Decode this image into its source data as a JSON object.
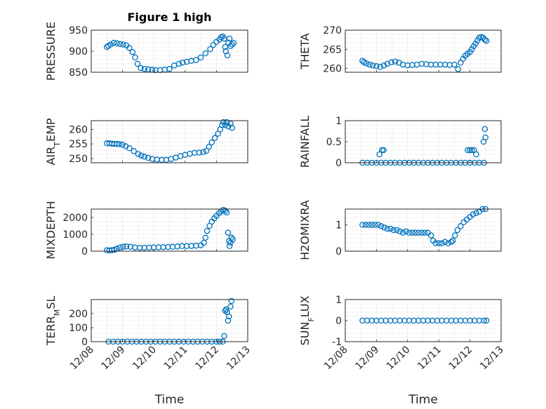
{
  "chart_data": [
    {
      "type": "scatter",
      "title": "Figure 1 high",
      "ylabel": "PRESSURE",
      "ylim": [
        850,
        950
      ],
      "yticks": [
        850,
        900,
        950
      ],
      "xlim": [
        "12/08",
        "12/13"
      ],
      "xticks": [
        "12/08",
        "12/09",
        "12/10",
        "12/11",
        "12/12",
        "12/13"
      ],
      "show_xticklabels": false,
      "xlabel": "",
      "color": "#0072BD",
      "x": [
        0.5,
        0.55,
        0.62,
        0.72,
        0.82,
        0.92,
        1.02,
        1.12,
        1.22,
        1.32,
        1.4,
        1.48,
        1.58,
        1.7,
        1.82,
        1.95,
        2.05,
        2.2,
        2.35,
        2.5,
        2.65,
        2.8,
        2.92,
        3.05,
        3.2,
        3.35,
        3.5,
        3.65,
        3.8,
        3.9,
        4.0,
        4.1,
        4.15,
        4.2,
        4.25,
        4.28,
        4.3,
        4.35,
        4.38,
        4.42,
        4.45,
        4.5,
        4.55
      ],
      "y": [
        910,
        913,
        916,
        920,
        919,
        917,
        916,
        914,
        908,
        898,
        885,
        870,
        860,
        858,
        857,
        856,
        855,
        855,
        856,
        858,
        866,
        870,
        873,
        875,
        877,
        879,
        885,
        895,
        905,
        915,
        922,
        928,
        933,
        935,
        930,
        910,
        900,
        890,
        920,
        930,
        912,
        916,
        920
      ]
    },
    {
      "type": "scatter",
      "ylabel": "THETA",
      "ylim": [
        259,
        270
      ],
      "yticks": [
        260,
        265,
        270
      ],
      "xlim": [
        "12/08",
        "12/13"
      ],
      "xticks": [
        "12/08",
        "12/09",
        "12/10",
        "12/11",
        "12/12",
        "12/13"
      ],
      "show_xticklabels": false,
      "xlabel": "",
      "color": "#0072BD",
      "x": [
        0.55,
        0.6,
        0.68,
        0.78,
        0.88,
        1.0,
        1.12,
        1.24,
        1.35,
        1.48,
        1.6,
        1.72,
        1.85,
        2.0,
        2.15,
        2.3,
        2.45,
        2.6,
        2.75,
        2.9,
        3.05,
        3.2,
        3.35,
        3.5,
        3.62,
        3.7,
        3.78,
        3.85,
        3.92,
        4.0,
        4.06,
        4.12,
        4.18,
        4.24,
        4.3,
        4.36,
        4.42,
        4.48,
        4.53
      ],
      "y": [
        262.0,
        261.6,
        261.3,
        261.0,
        260.8,
        260.6,
        260.4,
        260.8,
        261.2,
        261.6,
        261.8,
        261.5,
        261.0,
        260.8,
        260.9,
        261.0,
        261.2,
        261.1,
        261.0,
        261.0,
        261.0,
        261.0,
        260.9,
        261.0,
        259.8,
        261.5,
        262.5,
        263.3,
        263.8,
        264.3,
        265.0,
        265.8,
        266.5,
        267.3,
        268.0,
        268.2,
        268.0,
        267.5,
        267.2
      ]
    },
    {
      "type": "scatter",
      "ylabel": "AIR_TEMP",
      "ylim": [
        248.5,
        263
      ],
      "yticks": [
        250,
        255,
        260
      ],
      "xlim": [
        "12/08",
        "12/13"
      ],
      "xticks": [
        "12/08",
        "12/09",
        "12/10",
        "12/11",
        "12/12",
        "12/13"
      ],
      "show_xticklabels": false,
      "xlabel": "",
      "color": "#0072BD",
      "x": [
        0.5,
        0.58,
        0.66,
        0.74,
        0.82,
        0.9,
        1.0,
        1.1,
        1.22,
        1.36,
        1.5,
        1.6,
        1.7,
        1.82,
        1.95,
        2.1,
        2.25,
        2.4,
        2.55,
        2.7,
        2.85,
        3.0,
        3.15,
        3.3,
        3.45,
        3.58,
        3.68,
        3.76,
        3.85,
        3.95,
        4.05,
        4.12,
        4.18,
        4.22,
        4.28,
        4.33,
        4.38,
        4.45,
        4.5
      ],
      "y": [
        255.2,
        255.2,
        255.1,
        255.0,
        255.0,
        254.9,
        254.7,
        254.2,
        253.5,
        252.5,
        251.5,
        251.0,
        250.6,
        250.2,
        249.8,
        249.6,
        249.5,
        249.5,
        249.8,
        250.3,
        250.8,
        251.2,
        251.6,
        251.9,
        252.0,
        252.2,
        252.6,
        254.0,
        255.5,
        257.0,
        258.5,
        260.0,
        261.5,
        262.5,
        261.5,
        262.5,
        261.0,
        262.0,
        260.5
      ]
    },
    {
      "type": "scatter",
      "ylabel": "RAINFALL",
      "ylim": [
        0,
        1
      ],
      "yticks": [
        0,
        0.5,
        1
      ],
      "xlim": [
        "12/08",
        "12/13"
      ],
      "xticks": [
        "12/08",
        "12/09",
        "12/10",
        "12/11",
        "12/12",
        "12/13"
      ],
      "show_xticklabels": false,
      "xlabel": "",
      "color": "#0072BD",
      "x": [
        0.55,
        0.7,
        0.85,
        1.0,
        1.15,
        1.3,
        1.45,
        1.6,
        1.75,
        1.9,
        2.05,
        2.2,
        2.35,
        2.5,
        2.65,
        2.8,
        2.95,
        3.1,
        3.25,
        3.4,
        3.55,
        3.7,
        3.85,
        4.0,
        4.15,
        4.3,
        4.45,
        1.1,
        1.18,
        1.23,
        3.93,
        4.0,
        4.06,
        4.13,
        4.2,
        4.44,
        4.48,
        4.5
      ],
      "y": [
        0,
        0,
        0,
        0,
        0,
        0,
        0,
        0,
        0,
        0,
        0,
        0,
        0,
        0,
        0,
        0,
        0,
        0,
        0,
        0,
        0,
        0,
        0,
        0,
        0,
        0,
        0,
        0.2,
        0.3,
        0.3,
        0.3,
        0.3,
        0.3,
        0.3,
        0.2,
        0.5,
        0.8,
        0.6
      ]
    },
    {
      "type": "scatter",
      "ylabel": "MIXDEPTH",
      "ylim": [
        0,
        2500
      ],
      "yticks": [
        0,
        1000,
        2000
      ],
      "xlim": [
        "12/08",
        "12/13"
      ],
      "xticks": [
        "12/08",
        "12/09",
        "12/10",
        "12/11",
        "12/12",
        "12/13"
      ],
      "show_xticklabels": false,
      "xlabel": "",
      "color": "#0072BD",
      "x": [
        0.5,
        0.58,
        0.66,
        0.74,
        0.82,
        0.92,
        1.02,
        1.12,
        1.25,
        1.4,
        1.55,
        1.7,
        1.85,
        2.0,
        2.15,
        2.3,
        2.45,
        2.6,
        2.75,
        2.9,
        3.05,
        3.2,
        3.35,
        3.5,
        3.6,
        3.65,
        3.7,
        3.78,
        3.85,
        3.93,
        4.0,
        4.08,
        4.15,
        4.22,
        4.28,
        4.33,
        4.37,
        4.4,
        4.42,
        4.45,
        4.48,
        4.52
      ],
      "y": [
        50,
        40,
        60,
        80,
        150,
        220,
        260,
        280,
        260,
        220,
        200,
        200,
        210,
        220,
        230,
        240,
        250,
        260,
        280,
        300,
        300,
        310,
        320,
        350,
        500,
        800,
        1200,
        1500,
        1750,
        1950,
        2100,
        2250,
        2350,
        2450,
        2400,
        2300,
        1100,
        600,
        300,
        500,
        800,
        700
      ]
    },
    {
      "type": "scatter",
      "ylabel": "H2OMIXRA",
      "ylim": [
        0,
        1.6
      ],
      "yticks": [
        0,
        1
      ],
      "xlim": [
        "12/08",
        "12/13"
      ],
      "xticks": [
        "12/08",
        "12/09",
        "12/10",
        "12/11",
        "12/12",
        "12/13"
      ],
      "show_xticklabels": false,
      "xlabel": "",
      "color": "#0072BD",
      "x": [
        0.55,
        0.65,
        0.75,
        0.85,
        0.95,
        1.05,
        1.15,
        1.25,
        1.35,
        1.45,
        1.55,
        1.65,
        1.75,
        1.85,
        1.95,
        2.05,
        2.15,
        2.25,
        2.35,
        2.45,
        2.55,
        2.65,
        2.75,
        2.82,
        2.9,
        3.0,
        3.1,
        3.2,
        3.3,
        3.4,
        3.45,
        3.52,
        3.6,
        3.7,
        3.8,
        3.9,
        4.0,
        4.1,
        4.2,
        4.3,
        4.4,
        4.5
      ],
      "y": [
        1.0,
        1.0,
        1.0,
        1.0,
        1.0,
        1.0,
        0.95,
        0.9,
        0.85,
        0.85,
        0.8,
        0.8,
        0.75,
        0.7,
        0.75,
        0.7,
        0.7,
        0.7,
        0.7,
        0.7,
        0.7,
        0.7,
        0.6,
        0.4,
        0.3,
        0.3,
        0.3,
        0.35,
        0.3,
        0.35,
        0.4,
        0.6,
        0.8,
        0.95,
        1.1,
        1.2,
        1.3,
        1.4,
        1.45,
        1.5,
        1.6,
        1.6
      ]
    },
    {
      "type": "scatter",
      "ylabel": "TERR_MSL",
      "ylim": [
        0,
        300
      ],
      "yticks": [
        0,
        100,
        200
      ],
      "xlim": [
        "12/08",
        "12/13"
      ],
      "xticks": [
        "12/08",
        "12/09",
        "12/10",
        "12/11",
        "12/12",
        "12/13"
      ],
      "show_xticklabels": true,
      "xlabel": "Time",
      "color": "#0072BD",
      "x": [
        0.55,
        0.7,
        0.85,
        1.0,
        1.15,
        1.3,
        1.45,
        1.6,
        1.75,
        1.9,
        2.05,
        2.2,
        2.35,
        2.5,
        2.65,
        2.8,
        2.95,
        3.1,
        3.25,
        3.4,
        3.55,
        3.7,
        3.85,
        4.0,
        4.1,
        4.2,
        4.25,
        4.28,
        4.31,
        4.34,
        4.37,
        4.4,
        4.45,
        4.48
      ],
      "y": [
        0,
        0,
        0,
        0,
        0,
        0,
        0,
        0,
        0,
        0,
        0,
        0,
        0,
        0,
        0,
        0,
        0,
        0,
        0,
        0,
        0,
        0,
        0,
        0,
        0,
        0,
        40,
        220,
        230,
        210,
        150,
        180,
        250,
        290
      ]
    },
    {
      "type": "scatter",
      "ylabel": "SUN_FLUX",
      "ylim": [
        -1,
        1
      ],
      "yticks": [
        -1,
        0,
        1
      ],
      "xlim": [
        "12/08",
        "12/13"
      ],
      "xticks": [
        "12/08",
        "12/09",
        "12/10",
        "12/11",
        "12/12",
        "12/13"
      ],
      "show_xticklabels": true,
      "xlabel": "Time",
      "color": "#0072BD",
      "x": [
        0.55,
        0.7,
        0.85,
        1.0,
        1.15,
        1.3,
        1.45,
        1.6,
        1.75,
        1.9,
        2.05,
        2.2,
        2.35,
        2.5,
        2.65,
        2.8,
        2.95,
        3.1,
        3.25,
        3.4,
        3.55,
        3.7,
        3.85,
        4.0,
        4.15,
        4.3,
        4.45,
        4.53
      ],
      "y": [
        0,
        0,
        0,
        0,
        0,
        0,
        0,
        0,
        0,
        0,
        0,
        0,
        0,
        0,
        0,
        0,
        0,
        0,
        0,
        0,
        0,
        0,
        0,
        0,
        0,
        0,
        0,
        0
      ]
    }
  ]
}
